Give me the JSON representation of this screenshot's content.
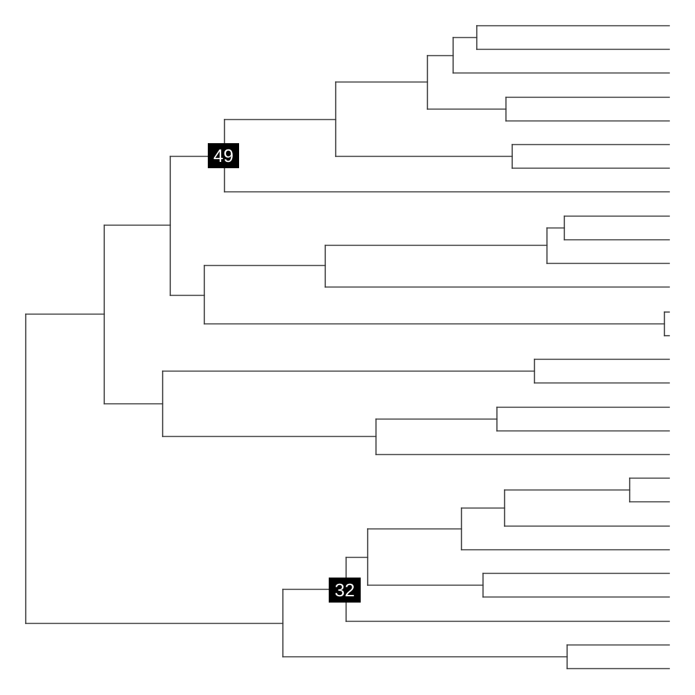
{
  "tree": {
    "type": "dendrogram",
    "orientation": "left-to-right",
    "leaf_count": 28,
    "node_labels": [
      {
        "id": "n49",
        "text": "49"
      },
      {
        "id": "n32",
        "text": "32"
      }
    ]
  },
  "colors": {
    "branch": "#333333",
    "label_background": "#000000",
    "label_text": "#ffffff",
    "background": "#ffffff"
  }
}
